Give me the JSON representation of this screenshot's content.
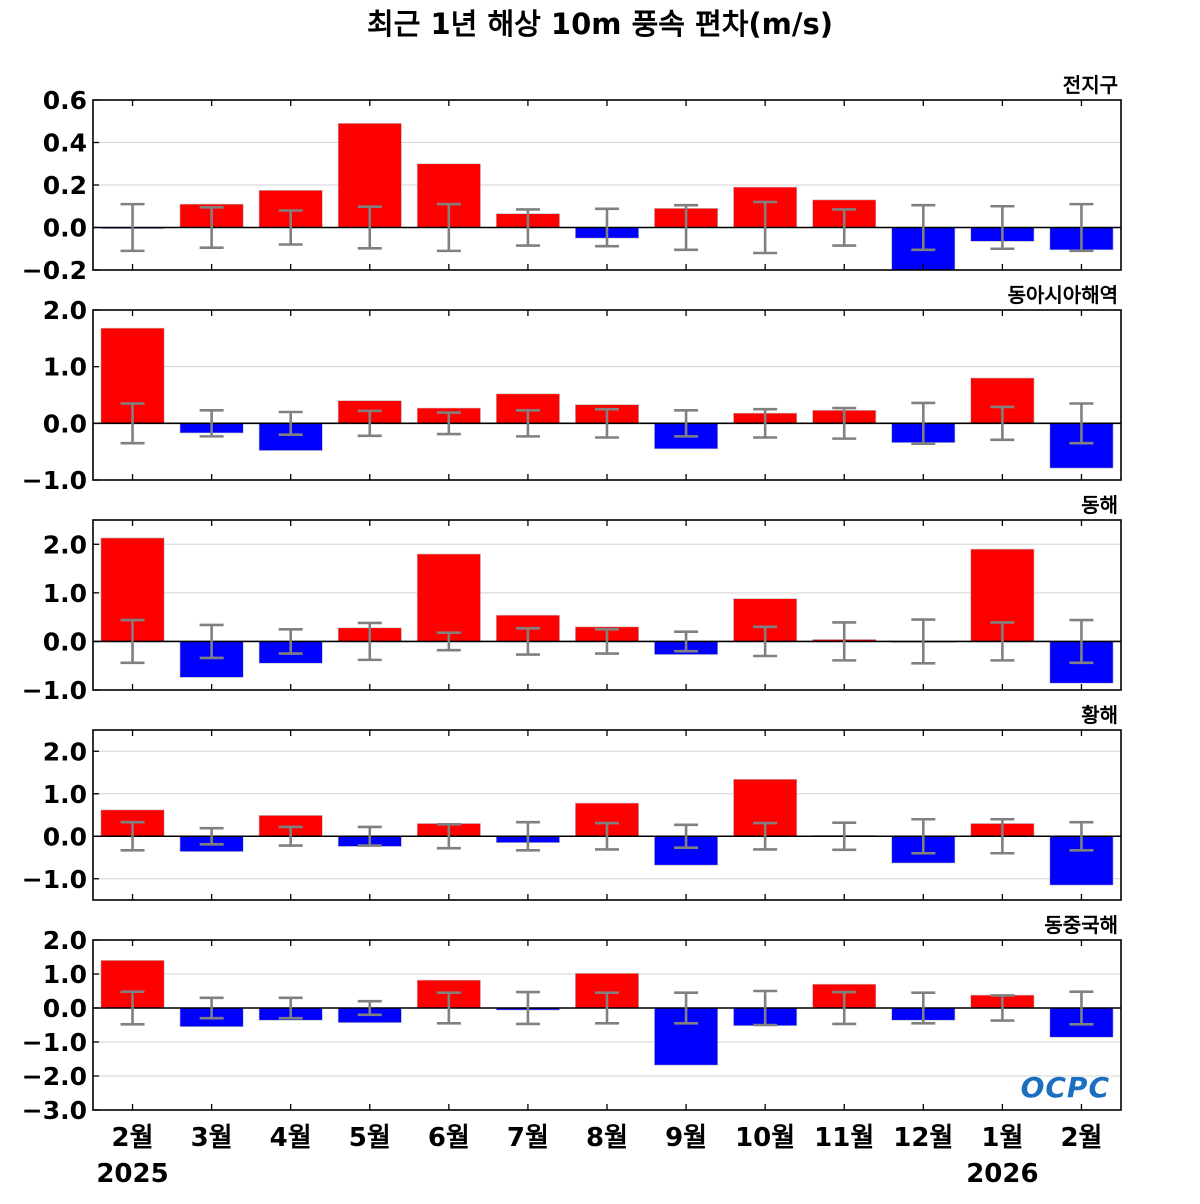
{
  "title": "최근 1년 해상 10m 풍속 편차(m/s)",
  "logo_text": "OCPC",
  "colors": {
    "positive": "#ff0000",
    "negative": "#0000ff",
    "errorbar": "#808080",
    "zero_line": "#000000",
    "grid": "#d3d3d3",
    "logo": "#1a6fc0"
  },
  "chart_data": {
    "type": "bar",
    "categories": [
      "2월",
      "3월",
      "4월",
      "5월",
      "6월",
      "7월",
      "8월",
      "9월",
      "10월",
      "11월",
      "12월",
      "1월",
      "2월"
    ],
    "year_labels": [
      {
        "index": 0,
        "label": "2025"
      },
      {
        "index": 11,
        "label": "2026"
      }
    ],
    "grid": true,
    "panels": [
      {
        "title": "전지구",
        "ylim": [
          -0.2,
          0.6
        ],
        "yticks": [
          -0.2,
          0.0,
          0.2,
          0.4,
          0.6
        ],
        "ytick_labels": [
          "−0.2",
          "0.0",
          "0.2",
          "0.4",
          "0.6"
        ],
        "values": [
          -0.005,
          0.11,
          0.175,
          0.49,
          0.3,
          0.065,
          -0.05,
          0.09,
          0.19,
          0.13,
          -0.2,
          -0.065,
          -0.105
        ],
        "error": [
          0.11,
          0.095,
          0.08,
          0.098,
          0.11,
          0.085,
          0.088,
          0.105,
          0.12,
          0.085,
          0.105,
          0.1,
          0.11
        ]
      },
      {
        "title": "동아시아해역",
        "ylim": [
          -1.0,
          2.0
        ],
        "yticks": [
          -1.0,
          0.0,
          1.0,
          2.0
        ],
        "ytick_labels": [
          "−1.0",
          "0.0",
          "1.0",
          "2.0"
        ],
        "values": [
          1.68,
          -0.17,
          -0.48,
          0.4,
          0.27,
          0.52,
          0.33,
          -0.45,
          0.18,
          0.23,
          -0.34,
          0.8,
          -0.79
        ],
        "error": [
          0.35,
          0.23,
          0.2,
          0.22,
          0.19,
          0.23,
          0.25,
          0.23,
          0.25,
          0.27,
          0.36,
          0.29,
          0.35
        ]
      },
      {
        "title": "동해",
        "ylim": [
          -1.0,
          2.5
        ],
        "yticks": [
          -1.0,
          0.0,
          1.0,
          2.0
        ],
        "ytick_labels": [
          "−1.0",
          "0.0",
          "1.0",
          "2.0"
        ],
        "values": [
          2.13,
          -0.74,
          -0.45,
          0.28,
          1.8,
          0.54,
          0.3,
          -0.27,
          0.88,
          0.04,
          -0.02,
          1.9,
          -0.86
        ],
        "error": [
          0.44,
          0.34,
          0.25,
          0.38,
          0.18,
          0.27,
          0.25,
          0.2,
          0.3,
          0.39,
          0.45,
          0.39,
          0.44
        ]
      },
      {
        "title": "황해",
        "ylim": [
          -1.5,
          2.5
        ],
        "yticks": [
          -1.0,
          0.0,
          1.0,
          2.0
        ],
        "ytick_labels": [
          "−1.0",
          "0.0",
          "1.0",
          "2.0"
        ],
        "values": [
          0.62,
          -0.36,
          0.49,
          -0.24,
          0.3,
          -0.15,
          0.78,
          -0.68,
          1.34,
          0.02,
          -0.63,
          0.3,
          -1.15
        ],
        "error": [
          0.33,
          0.19,
          0.22,
          0.22,
          0.28,
          0.33,
          0.31,
          0.27,
          0.31,
          0.32,
          0.4,
          0.4,
          0.33
        ]
      },
      {
        "title": "동중국해",
        "ylim": [
          -3.0,
          2.0
        ],
        "yticks": [
          -3.0,
          -2.0,
          -1.0,
          0.0,
          1.0,
          2.0
        ],
        "ytick_labels": [
          "−3.0",
          "−2.0",
          "−1.0",
          "0.0",
          "1.0",
          "2.0"
        ],
        "values": [
          1.4,
          -0.55,
          -0.36,
          -0.43,
          0.82,
          -0.06,
          1.02,
          -1.68,
          -0.52,
          0.7,
          -0.36,
          0.38,
          -0.86
        ],
        "error": [
          0.48,
          0.3,
          0.3,
          0.2,
          0.45,
          0.47,
          0.45,
          0.45,
          0.5,
          0.47,
          0.45,
          0.37,
          0.48
        ]
      }
    ]
  }
}
